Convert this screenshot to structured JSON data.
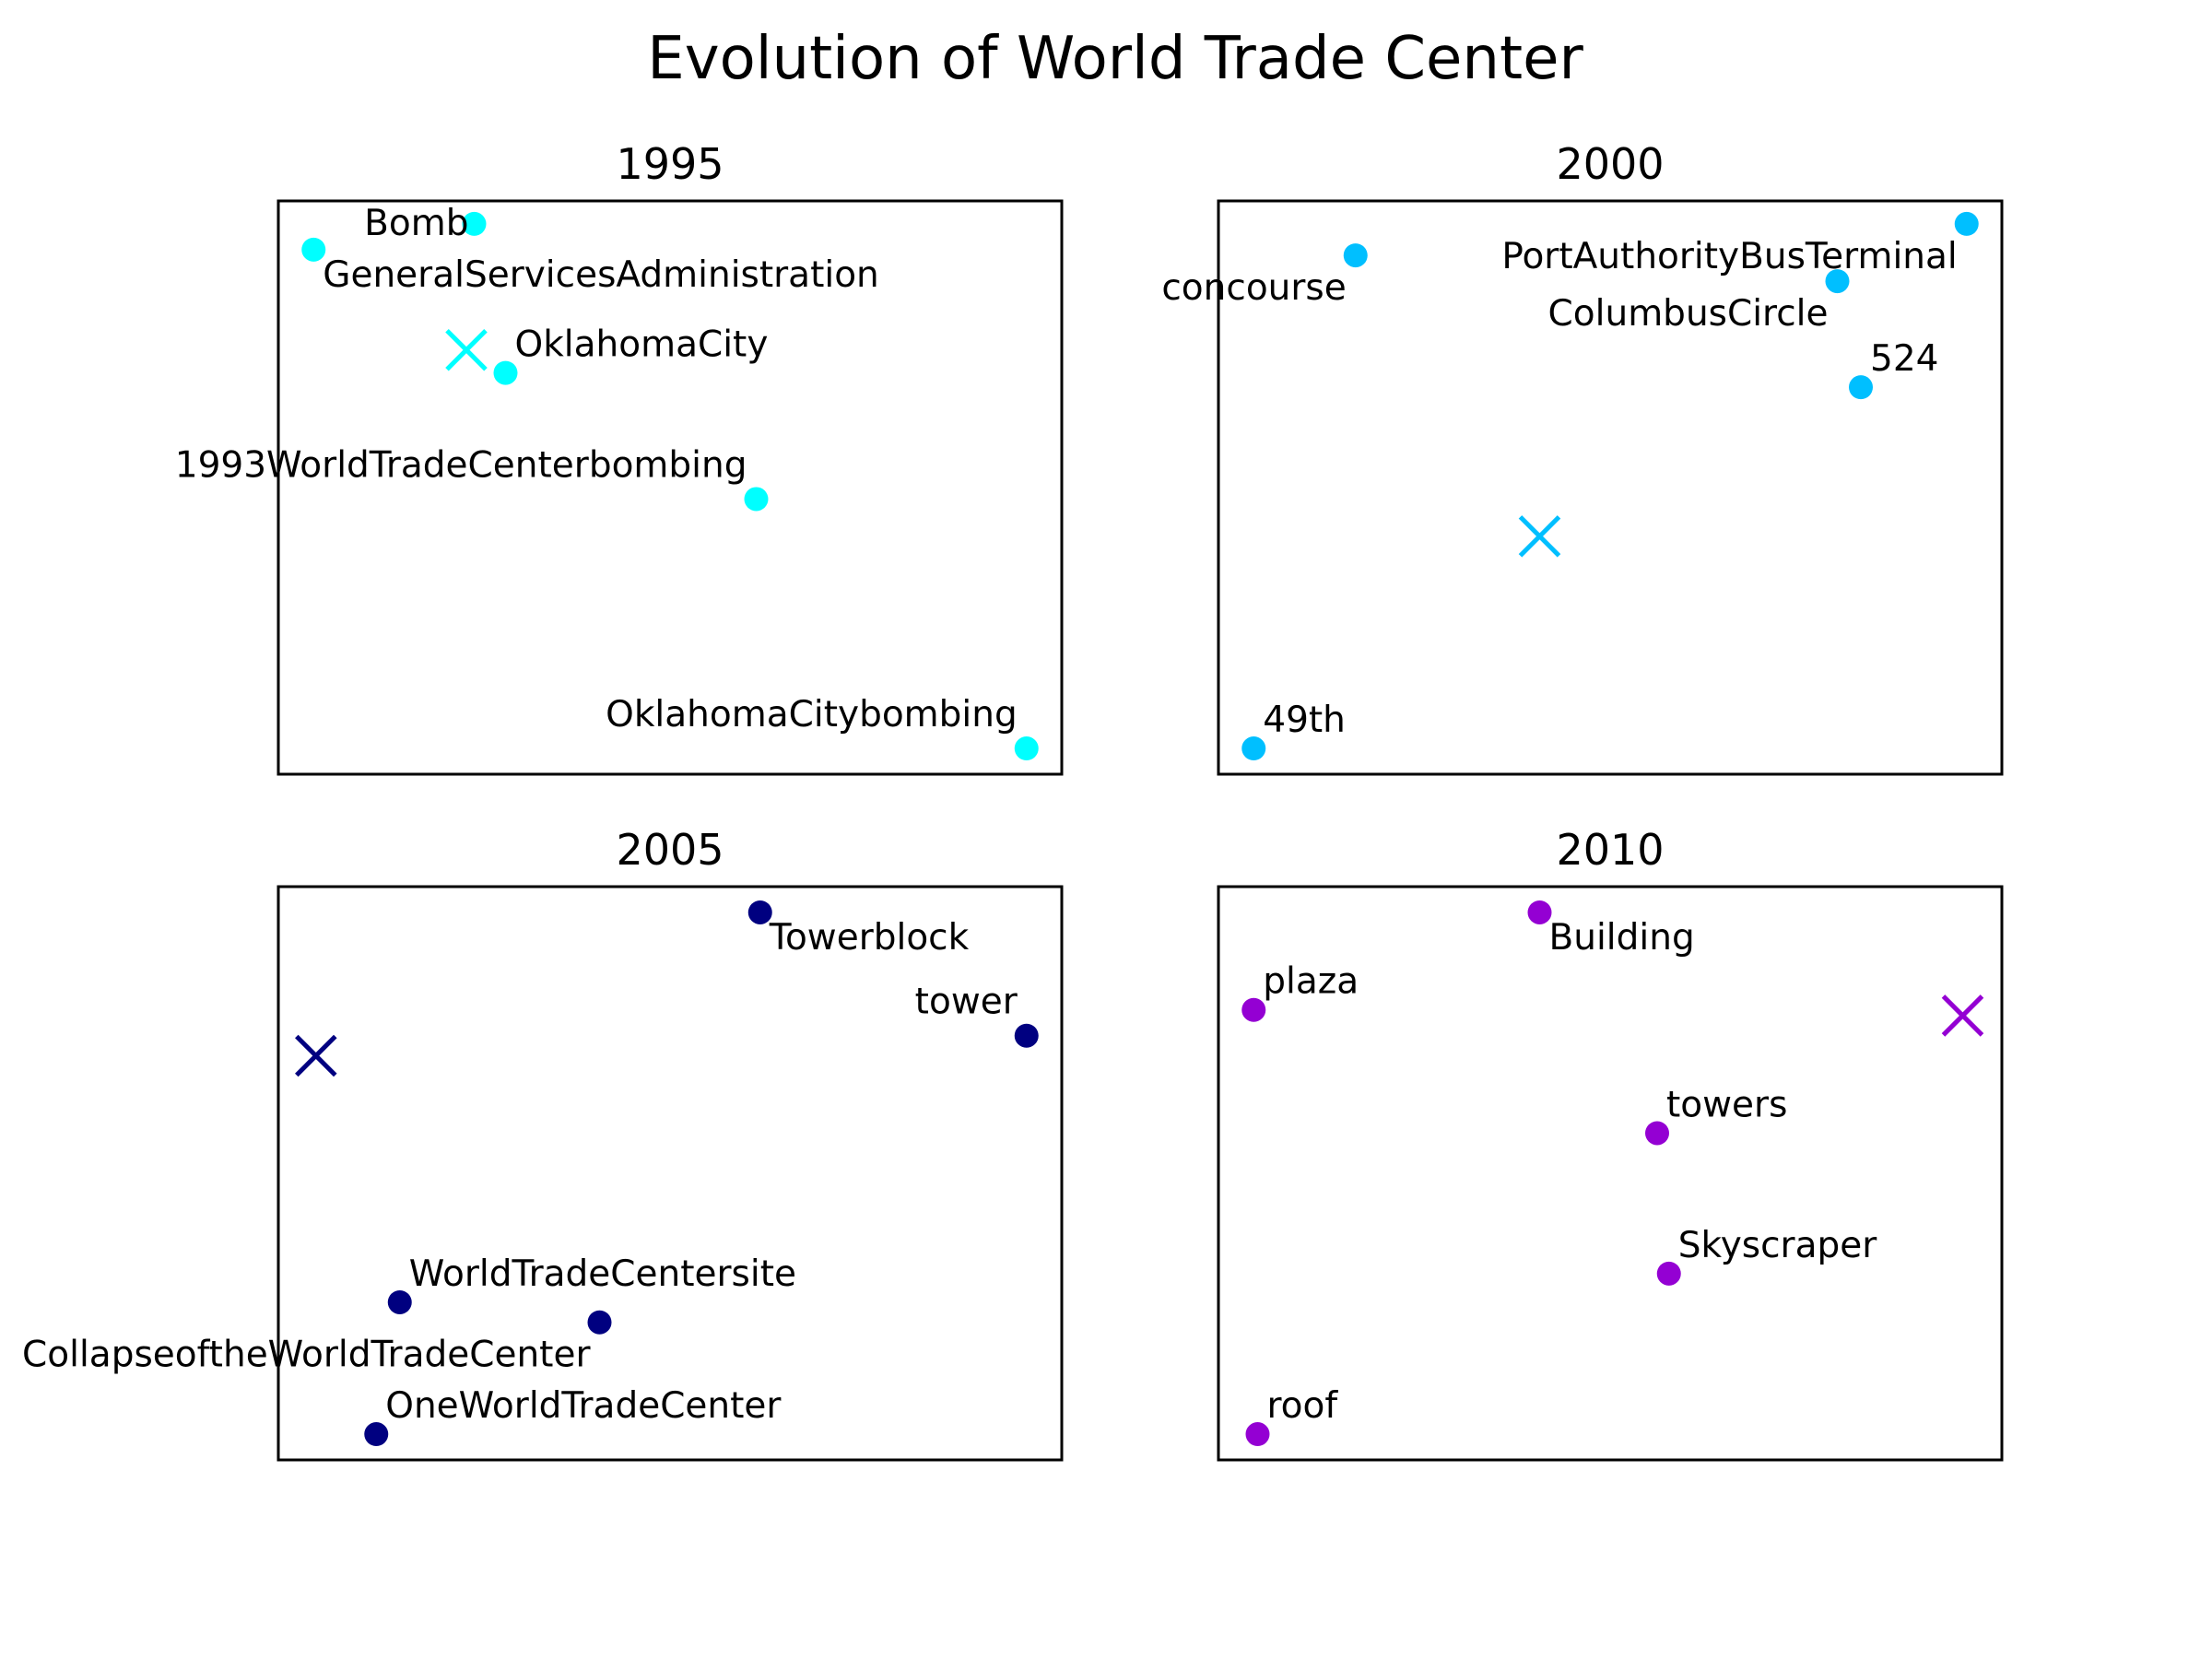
{
  "title": "Evolution of World Trade Center",
  "chart_data": [
    {
      "type": "scatter",
      "title": "1995",
      "color": "#00FFFF",
      "xlim": [
        0,
        100
      ],
      "ylim": [
        0,
        100
      ],
      "grid": false,
      "points": [
        {
          "label": "Bomb",
          "x": 25,
          "y": 96,
          "label_pos": "left"
        },
        {
          "label": "GeneralServicesAdministration",
          "x": 4.5,
          "y": 91.5,
          "label_pos": "below-right"
        },
        {
          "label": "OklahomaCity",
          "x": 29,
          "y": 70,
          "label_pos": "above-right"
        },
        {
          "label": "1993WorldTradeCenterbombing",
          "x": 61,
          "y": 48,
          "label_pos": "above-left"
        },
        {
          "label": "OklahomaCitybombing",
          "x": 95.5,
          "y": 4.5,
          "label_pos": "above-left"
        }
      ],
      "centroid": {
        "x": 24,
        "y": 74
      }
    },
    {
      "type": "scatter",
      "title": "2000",
      "color": "#00BFFF",
      "xlim": [
        0,
        100
      ],
      "ylim": [
        0,
        100
      ],
      "grid": false,
      "points": [
        {
          "label": "concourse",
          "x": 17.5,
          "y": 90.5,
          "label_pos": "below-left"
        },
        {
          "label": "PortAuthorityBusTerminal",
          "x": 95.5,
          "y": 96,
          "label_pos": "below-left"
        },
        {
          "label": "ColumbusCircle",
          "x": 79,
          "y": 86,
          "label_pos": "below-left"
        },
        {
          "label": "524",
          "x": 82,
          "y": 67.5,
          "label_pos": "above-right"
        },
        {
          "label": "49th",
          "x": 4.5,
          "y": 4.5,
          "label_pos": "above-right"
        }
      ],
      "centroid": {
        "x": 41,
        "y": 41.5
      }
    },
    {
      "type": "scatter",
      "title": "2005",
      "color": "#000080",
      "xlim": [
        0,
        100
      ],
      "ylim": [
        0,
        100
      ],
      "grid": false,
      "points": [
        {
          "label": "Towerblock",
          "x": 61.5,
          "y": 95.5,
          "label_pos": "below-right"
        },
        {
          "label": "tower",
          "x": 95.5,
          "y": 74,
          "label_pos": "above-left"
        },
        {
          "label": "WorldTradeCentersite",
          "x": 15.5,
          "y": 27.5,
          "label_pos": "above-right"
        },
        {
          "label": "CollapseoftheWorldTradeCenter",
          "x": 41,
          "y": 24,
          "label_pos": "below-left"
        },
        {
          "label": "OneWorldTradeCenter",
          "x": 12.5,
          "y": 4.5,
          "label_pos": "above-right"
        }
      ],
      "centroid": {
        "x": 4.8,
        "y": 70.5
      }
    },
    {
      "type": "scatter",
      "title": "2010",
      "color": "#9400D3",
      "xlim": [
        0,
        100
      ],
      "ylim": [
        0,
        100
      ],
      "grid": false,
      "points": [
        {
          "label": "Building",
          "x": 41,
          "y": 95.5,
          "label_pos": "below-right"
        },
        {
          "label": "plaza",
          "x": 4.5,
          "y": 78.5,
          "label_pos": "above-right"
        },
        {
          "label": "towers",
          "x": 56,
          "y": 57,
          "label_pos": "above-right"
        },
        {
          "label": "Skyscraper",
          "x": 57.5,
          "y": 32.5,
          "label_pos": "above-right"
        },
        {
          "label": "roof",
          "x": 5,
          "y": 4.5,
          "label_pos": "above-right"
        }
      ],
      "centroid": {
        "x": 95,
        "y": 77.5
      }
    }
  ]
}
